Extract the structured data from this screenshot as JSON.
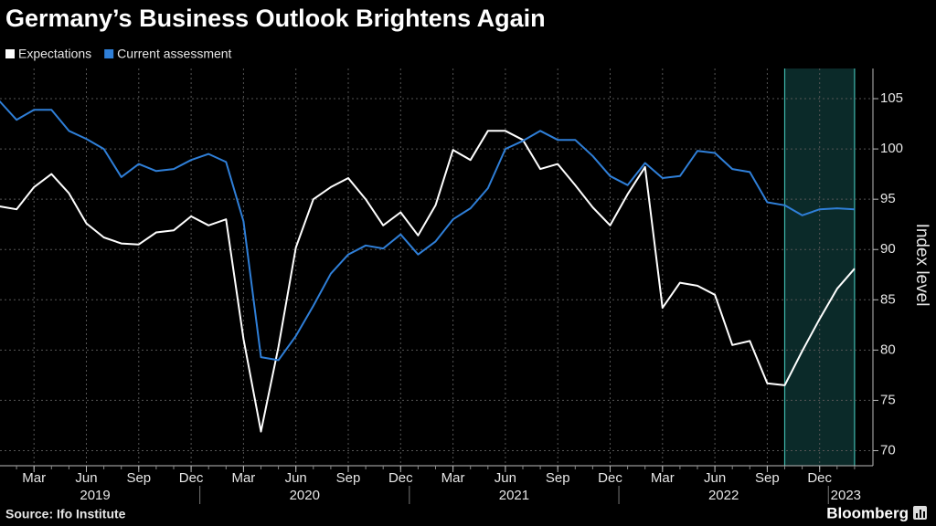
{
  "chart_data": {
    "type": "line",
    "title": "Germany’s Business Outlook Brightens Again",
    "y_label": "Index level",
    "source": "Source: Ifo Institute",
    "brand": "Bloomberg",
    "x": [
      "2019-01",
      "2019-02",
      "2019-03",
      "2019-04",
      "2019-05",
      "2019-06",
      "2019-07",
      "2019-08",
      "2019-09",
      "2019-10",
      "2019-11",
      "2019-12",
      "2020-01",
      "2020-02",
      "2020-03",
      "2020-04",
      "2020-05",
      "2020-06",
      "2020-07",
      "2020-08",
      "2020-09",
      "2020-10",
      "2020-11",
      "2020-12",
      "2021-01",
      "2021-02",
      "2021-03",
      "2021-04",
      "2021-05",
      "2021-06",
      "2021-07",
      "2021-08",
      "2021-09",
      "2021-10",
      "2021-11",
      "2021-12",
      "2022-01",
      "2022-02",
      "2022-03",
      "2022-04",
      "2022-05",
      "2022-06",
      "2022-07",
      "2022-08",
      "2022-09",
      "2022-10",
      "2022-11",
      "2022-12",
      "2023-01",
      "2023-02"
    ],
    "series": [
      {
        "name": "Expectations",
        "color": "#ffffff",
        "values": [
          94.3,
          94.0,
          96.2,
          97.5,
          95.6,
          92.6,
          91.2,
          90.6,
          90.5,
          91.7,
          91.9,
          93.3,
          92.4,
          93.0,
          81.1,
          71.9,
          80.3,
          90.2,
          95.0,
          96.2,
          97.1,
          95.0,
          92.4,
          93.7,
          91.4,
          94.4,
          99.9,
          98.9,
          101.8,
          101.8,
          100.9,
          98.0,
          98.5,
          96.4,
          94.2,
          92.4,
          95.5,
          98.2,
          84.2,
          86.7,
          86.4,
          85.5,
          80.5,
          80.9,
          76.7,
          76.5,
          79.9,
          83.1,
          86.1,
          88.1
        ]
      },
      {
        "name": "Current assessment",
        "color": "#2f7fd8",
        "values": [
          104.8,
          102.9,
          103.9,
          103.9,
          101.8,
          101.0,
          100.0,
          97.2,
          98.5,
          97.8,
          98.0,
          98.9,
          99.5,
          98.7,
          92.8,
          79.3,
          79.0,
          81.4,
          84.4,
          87.6,
          89.5,
          90.4,
          90.1,
          91.5,
          89.5,
          90.8,
          93.0,
          94.1,
          96.1,
          100.0,
          100.8,
          101.8,
          100.9,
          100.9,
          99.3,
          97.3,
          96.4,
          98.6,
          97.1,
          97.3,
          99.8,
          99.6,
          98.0,
          97.7,
          94.7,
          94.4,
          93.4,
          94.0,
          94.1,
          94.0
        ]
      }
    ],
    "ylim": [
      68.5,
      108
    ],
    "yticks": [
      70,
      75,
      80,
      85,
      90,
      95,
      100,
      105
    ],
    "xticks": [
      {
        "value": "2019-03",
        "label": "Mar"
      },
      {
        "value": "2019-06",
        "label": "Jun"
      },
      {
        "value": "2019-09",
        "label": "Sep"
      },
      {
        "value": "2019-12",
        "label": "Dec"
      },
      {
        "value": "2020-03",
        "label": "Mar"
      },
      {
        "value": "2020-06",
        "label": "Jun"
      },
      {
        "value": "2020-09",
        "label": "Sep"
      },
      {
        "value": "2020-12",
        "label": "Dec"
      },
      {
        "value": "2021-03",
        "label": "Mar"
      },
      {
        "value": "2021-06",
        "label": "Jun"
      },
      {
        "value": "2021-09",
        "label": "Sep"
      },
      {
        "value": "2021-12",
        "label": "Dec"
      },
      {
        "value": "2022-03",
        "label": "Mar"
      },
      {
        "value": "2022-06",
        "label": "Jun"
      },
      {
        "value": "2022-09",
        "label": "Sep"
      },
      {
        "value": "2022-12",
        "label": "Dec"
      }
    ],
    "years": [
      "2019",
      "2020",
      "2021",
      "2022",
      "2023"
    ],
    "highlight": {
      "from": "2022-10",
      "to": "2023-02",
      "color": "#0b2a29",
      "edge": "#3fb8ad"
    },
    "grid": true,
    "legend": "top-left"
  }
}
